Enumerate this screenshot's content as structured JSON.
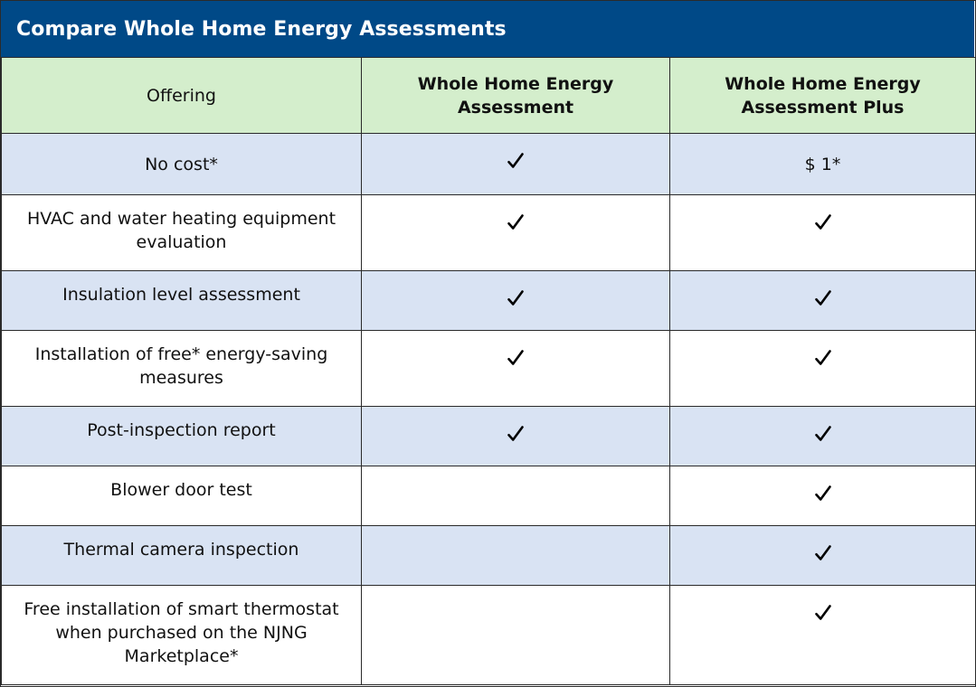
{
  "title": "Compare Whole Home Energy Assessments",
  "headers": [
    "Offering",
    "Whole Home Energy Assessment",
    "Whole Home Energy Assessment Plus"
  ],
  "rows": [
    {
      "label": "No cost*",
      "col2": "check",
      "col3": "$ 1*"
    },
    {
      "label": "HVAC and water heating equipment evaluation",
      "col2": "check",
      "col3": "check"
    },
    {
      "label": "Insulation level assessment",
      "col2": "check",
      "col3": "check"
    },
    {
      "label": "Installation of free* energy-saving measures",
      "col2": "check",
      "col3": "check"
    },
    {
      "label": "Post-inspection report",
      "col2": "check",
      "col3": "check"
    },
    {
      "label": "Blower door test",
      "col2": "",
      "col3": "check"
    },
    {
      "label": "Thermal camera inspection",
      "col2": "",
      "col3": "check"
    },
    {
      "label": "Free installation of smart thermostat when purchased on the NJNG Marketplace*",
      "col2": "",
      "col3": "check"
    }
  ],
  "colors": {
    "title_bg": "#004987",
    "header_bg": "#d4eecc",
    "shaded_row_bg": "#d9e3f3",
    "border": "#2a2a2a"
  },
  "icons": {
    "included": "check-icon"
  }
}
